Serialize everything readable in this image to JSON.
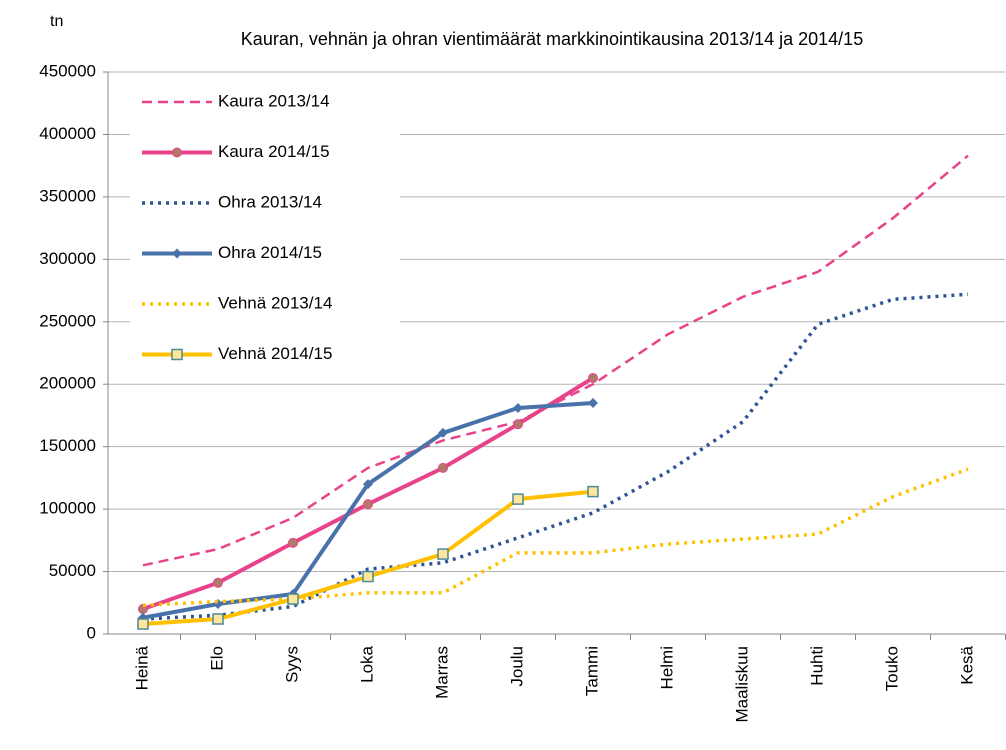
{
  "chart_data": {
    "type": "line",
    "title": "Kauran, vehnän ja ohran vientimäärät markkinointikausina 2013/14 ja 2014/15",
    "y_label": "tn",
    "categories": [
      "Heinä",
      "Elo",
      "Syys",
      "Loka",
      "Marras",
      "Joulu",
      "Tammi",
      "Helmi",
      "Maaliskuu",
      "Huhti",
      "Touko",
      "Kesä"
    ],
    "ylim": [
      0,
      450000
    ],
    "yticks": [
      0,
      50000,
      100000,
      150000,
      200000,
      250000,
      300000,
      350000,
      400000,
      450000
    ],
    "grid": true,
    "legend": "upper left",
    "series": [
      {
        "name": "Kaura 2013/14",
        "color": "#e8438a",
        "style": "dashed",
        "marker": null,
        "values": [
          55000,
          68000,
          93000,
          133000,
          155000,
          170000,
          200000,
          240000,
          270000,
          290000,
          333000,
          383000
        ]
      },
      {
        "name": "Kaura 2014/15",
        "color": "#e8438a",
        "style": "solid",
        "marker": "circle",
        "values": [
          20000,
          41000,
          73000,
          104000,
          133000,
          168000,
          205000,
          null,
          null,
          null,
          null,
          null
        ]
      },
      {
        "name": "Ohra 2013/14",
        "color": "#2f5597",
        "style": "dotted",
        "marker": null,
        "values": [
          12000,
          15000,
          22000,
          52000,
          57000,
          77000,
          97000,
          130000,
          170000,
          248000,
          268000,
          272000
        ]
      },
      {
        "name": "Ohra 2014/15",
        "color": "#4a72aa",
        "style": "solid",
        "marker": "diamond",
        "values": [
          13000,
          24000,
          32000,
          120000,
          161000,
          181000,
          185000,
          null,
          null,
          null,
          null,
          null
        ]
      },
      {
        "name": "Vehnä 2013/14",
        "color": "#ffc000",
        "style": "dotted",
        "marker": null,
        "values": [
          23000,
          26000,
          28000,
          33000,
          33000,
          65000,
          65000,
          72000,
          76000,
          80000,
          110000,
          132000
        ]
      },
      {
        "name": "Vehnä 2014/15",
        "color": "#ffc000",
        "style": "solid",
        "marker": "square",
        "values": [
          8000,
          12000,
          28000,
          46000,
          64000,
          108000,
          114000,
          null,
          null,
          null,
          null,
          null
        ]
      }
    ]
  }
}
